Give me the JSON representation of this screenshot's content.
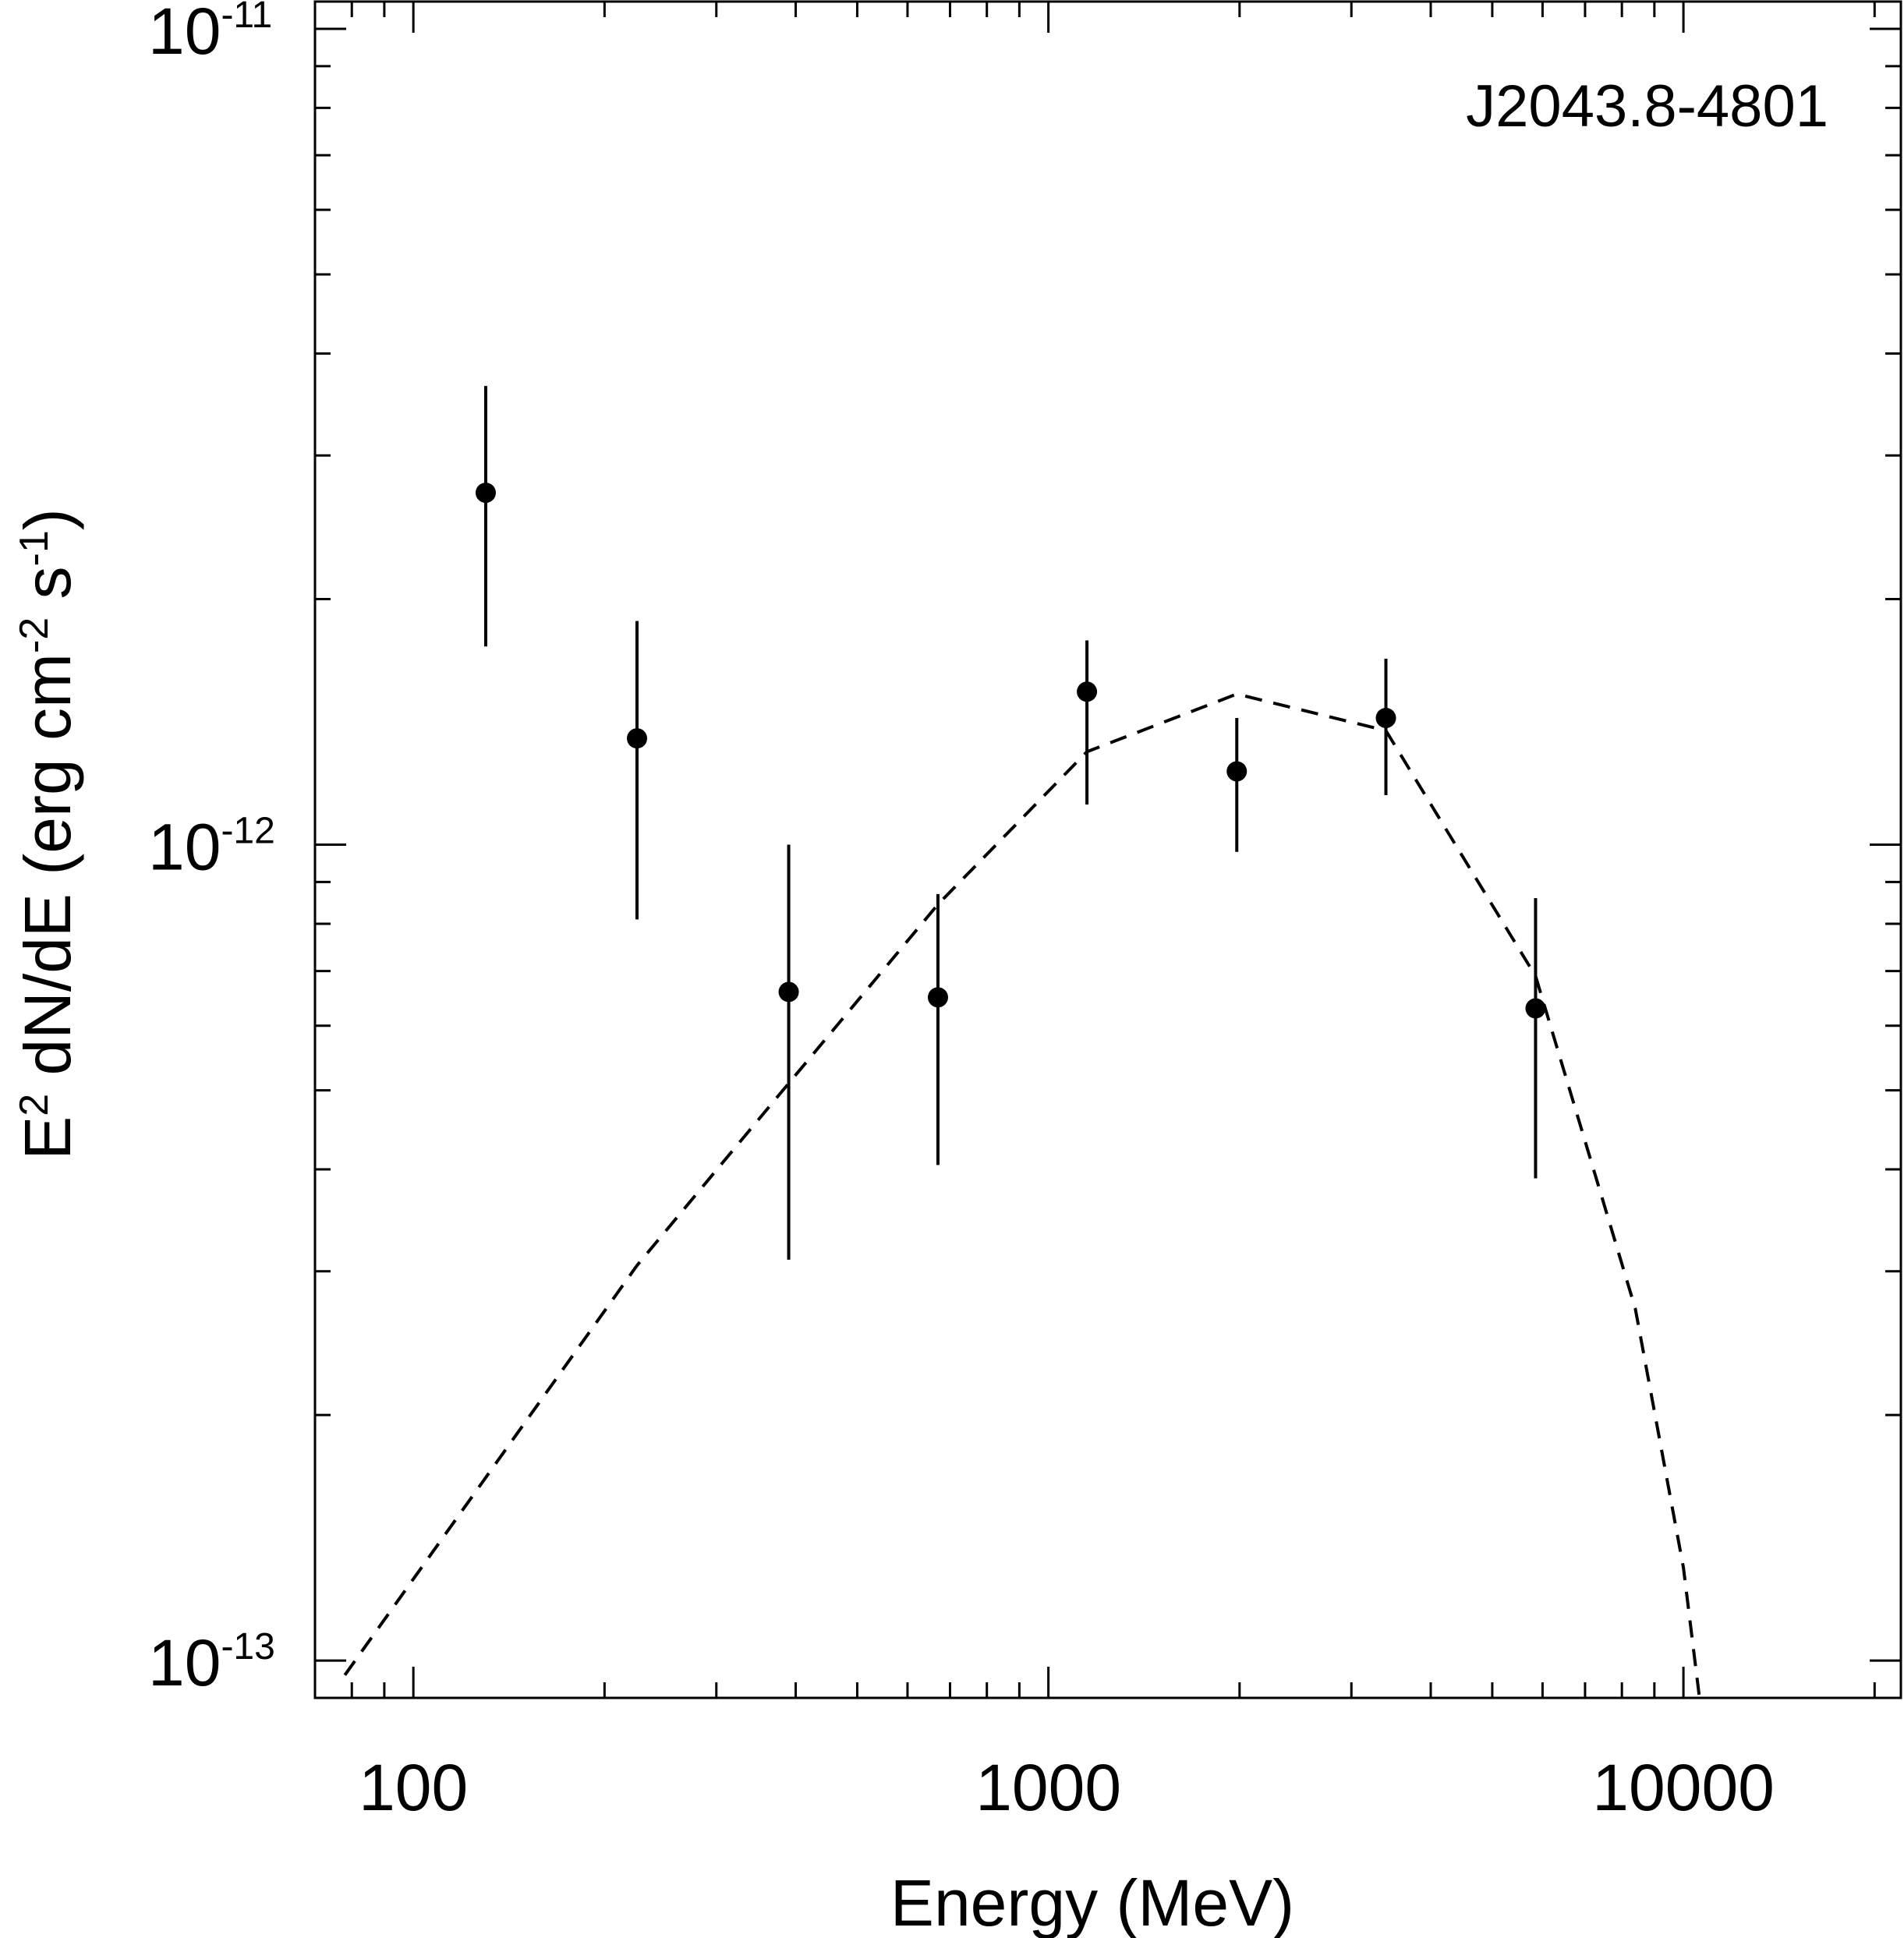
{
  "chart_data": {
    "type": "scatter",
    "annotation": "J2043.8-4801",
    "xlabel": "Energy (MeV)",
    "ylabel": {
      "prefix": "E",
      "prefix_sup": "2",
      "main": " dN/dE (erg cm",
      "sup1": "-2",
      "mid": " s",
      "sup2": "-1",
      "suffix": ")"
    },
    "xscale": "log",
    "yscale": "log",
    "xlim": [
      70,
      22000
    ],
    "ylim": [
      9e-14,
      1.08e-11
    ],
    "x_ticks": [
      {
        "value": 100,
        "label": "100"
      },
      {
        "value": 1000,
        "label": "1000"
      },
      {
        "value": 10000,
        "label": "10000"
      }
    ],
    "y_ticks": [
      {
        "value": 1e-11,
        "base": "10",
        "exp": "-11"
      },
      {
        "value": 1e-12,
        "base": "10",
        "exp": "-12"
      },
      {
        "value": 1e-13,
        "base": "10",
        "exp": "-13"
      }
    ],
    "series": [
      {
        "kind": "points",
        "points": [
          {
            "x": 130,
            "y": 2.7e-12,
            "ylo": 1.75e-12,
            "yhi": 3.65e-12
          },
          {
            "x": 225,
            "y": 1.35e-12,
            "ylo": 8.1e-13,
            "yhi": 1.88e-12
          },
          {
            "x": 390,
            "y": 6.6e-13,
            "ylo": 3.1e-13,
            "yhi": 1e-12
          },
          {
            "x": 670,
            "y": 6.5e-13,
            "ylo": 4.05e-13,
            "yhi": 8.7e-13
          },
          {
            "x": 1150,
            "y": 1.54e-12,
            "ylo": 1.12e-12,
            "yhi": 1.78e-12
          },
          {
            "x": 1980,
            "y": 1.23e-12,
            "ylo": 9.8e-13,
            "yhi": 1.43e-12
          },
          {
            "x": 3400,
            "y": 1.43e-12,
            "ylo": 1.15e-12,
            "yhi": 1.69e-12
          },
          {
            "x": 5850,
            "y": 6.3e-13,
            "ylo": 3.9e-13,
            "yhi": 8.6e-13
          }
        ]
      },
      {
        "kind": "model",
        "style": "dashed",
        "x": [
          78,
          225,
          390,
          670,
          1150,
          1980,
          3400,
          5850,
          8400,
          10000,
          10600
        ],
        "y": [
          9.6e-14,
          3.05e-13,
          5.1e-13,
          8.45e-13,
          1.3e-12,
          1.53e-12,
          1.38e-12,
          6.9e-13,
          2.7e-13,
          1.3e-13,
          9e-14
        ]
      }
    ]
  }
}
